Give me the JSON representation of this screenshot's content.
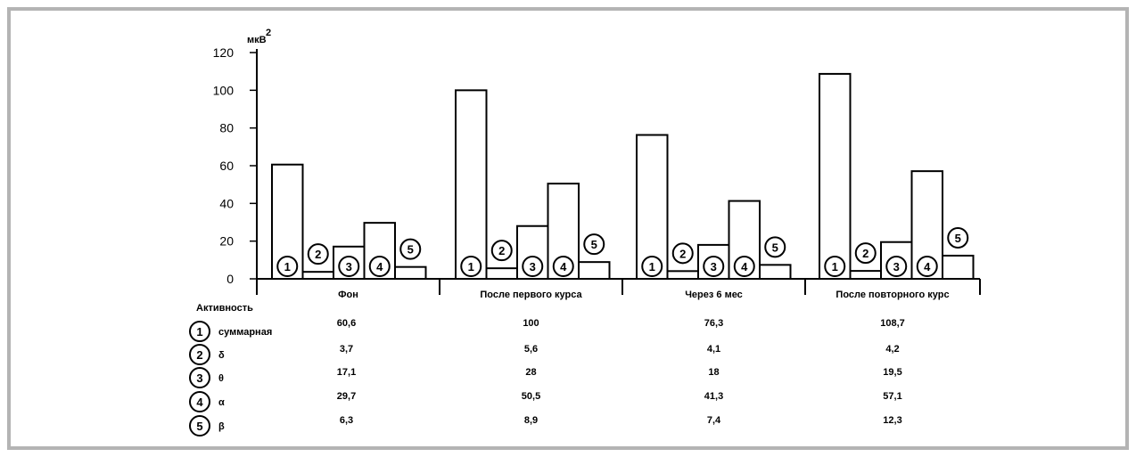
{
  "chart_data": {
    "type": "bar",
    "unit_label": "мкВ",
    "unit_sup": "2",
    "y_ticks": [
      "120",
      "100",
      "80",
      "60",
      "40",
      "20",
      "0"
    ],
    "ylim": [
      0,
      120
    ],
    "categories": [
      "Фон",
      "После первого курса",
      "Через 6 мес",
      "После повторного курс"
    ],
    "series": [
      {
        "marker": "1",
        "name": "суммарная",
        "values": [
          60.6,
          100,
          76.3,
          108.7
        ]
      },
      {
        "marker": "2",
        "name": "δ",
        "values": [
          3.7,
          5.6,
          4.1,
          4.2
        ]
      },
      {
        "marker": "3",
        "name": "θ",
        "values": [
          17.1,
          28,
          18,
          19.5
        ]
      },
      {
        "marker": "4",
        "name": "α",
        "values": [
          29.7,
          50.5,
          41.3,
          57.1
        ]
      },
      {
        "marker": "5",
        "name": "β",
        "values": [
          6.3,
          8.9,
          7.4,
          12.3
        ]
      }
    ],
    "table": {
      "header": "Активность",
      "rows": [
        {
          "marker": "1",
          "label": "суммарная",
          "values": [
            "60,6",
            "100",
            "76,3",
            "108,7"
          ]
        },
        {
          "marker": "2",
          "label": "δ",
          "values": [
            "3,7",
            "5,6",
            "4,1",
            "4,2"
          ]
        },
        {
          "marker": "3",
          "label": "θ",
          "values": [
            "17,1",
            "28",
            "18",
            "19,5"
          ]
        },
        {
          "marker": "4",
          "label": "α",
          "values": [
            "29,7",
            "50,5",
            "41,3",
            "57,1"
          ]
        },
        {
          "marker": "5",
          "label": "β",
          "values": [
            "6,3",
            "8,9",
            "7,4",
            "12,3"
          ]
        }
      ]
    },
    "grid": false,
    "legend": "table-below"
  }
}
